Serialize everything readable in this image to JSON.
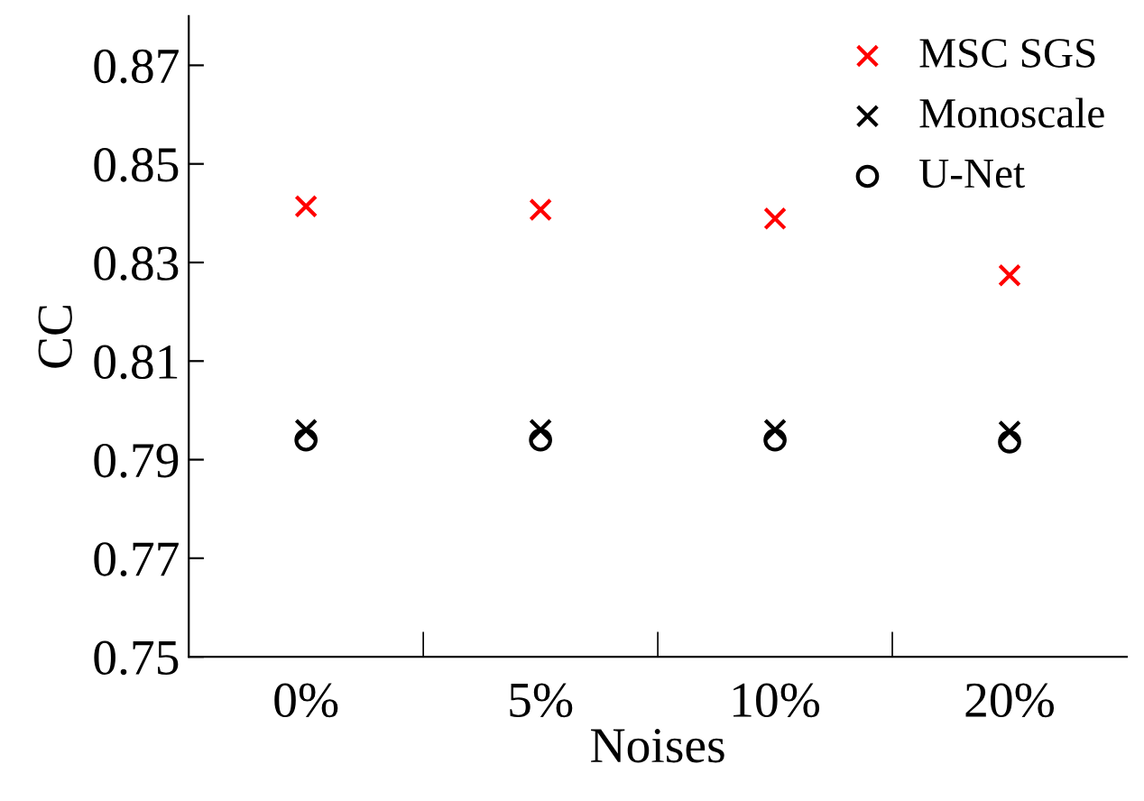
{
  "chart_data": {
    "type": "scatter",
    "xlabel": "Noises",
    "ylabel": "CC",
    "categories": [
      "0%",
      "5%",
      "10%",
      "20%"
    ],
    "series": [
      {
        "name": "MSC SGS",
        "color": "#ff0000",
        "marker": "cross",
        "values": [
          0.8414,
          0.8407,
          0.8389,
          0.8274
        ]
      },
      {
        "name": "Monoscale",
        "color": "#000000",
        "marker": "cross",
        "values": [
          0.796,
          0.796,
          0.796,
          0.7957
        ]
      },
      {
        "name": "U-Net",
        "color": "#000000",
        "marker": "circle",
        "values": [
          0.794,
          0.794,
          0.794,
          0.7936
        ]
      }
    ],
    "ylim": [
      0.75,
      0.88
    ],
    "yticks": [
      0.75,
      0.77,
      0.79,
      0.81,
      0.83,
      0.85,
      0.87
    ],
    "grid": false,
    "legend": "top right"
  }
}
